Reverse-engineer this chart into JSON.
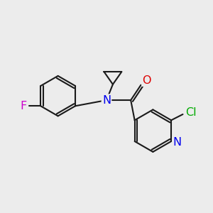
{
  "bg_color": "#ececec",
  "bond_color": "#1a1a1a",
  "bond_width": 1.5,
  "atom_colors": {
    "F": "#cc00cc",
    "N": "#0000ee",
    "O": "#dd0000",
    "Cl": "#00aa00",
    "C": "#1a1a1a"
  },
  "font_size": 10,
  "fig_size": [
    3.0,
    3.0
  ],
  "dpi": 100,
  "xlim": [
    0,
    10
  ],
  "ylim": [
    0,
    10
  ]
}
